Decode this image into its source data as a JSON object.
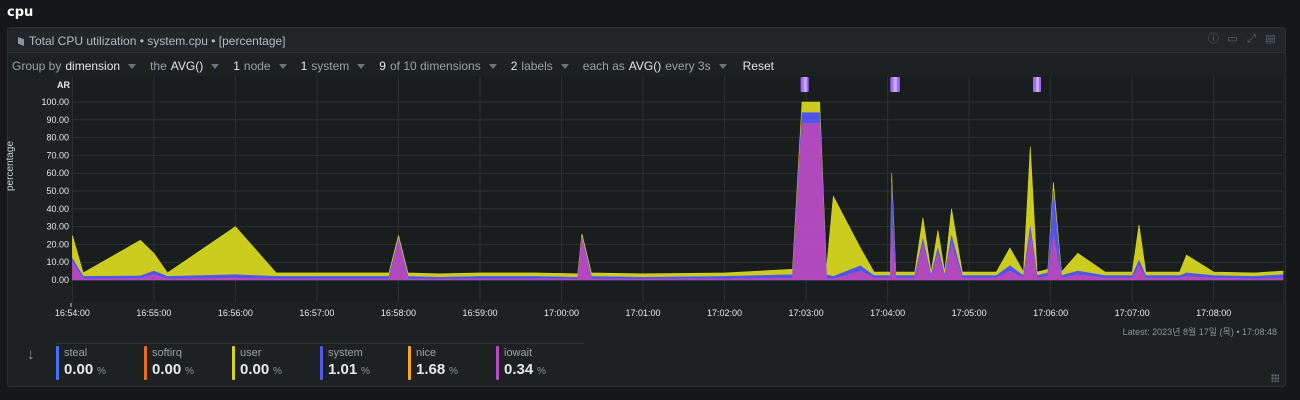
{
  "section_title": "cpu",
  "chart_title": "Total CPU utilization • system.cpu • [percentage]",
  "controls": {
    "group_by_label": "Group by",
    "group_by_value": "dimension",
    "the_label": "the",
    "aggregation": "AVG()",
    "nodes_num": "1",
    "nodes_label": "node",
    "systems_num": "1",
    "systems_label": "system",
    "dims_num": "9",
    "dims_label": "of 10 dimensions",
    "labels_num": "2",
    "labels_label": "labels",
    "each_as_label": "each as",
    "time_agg": "AVG()",
    "every_label": "every 3s",
    "reset_label": "Reset"
  },
  "header_icons": [
    "info-icon",
    "export-icon",
    "expand-icon",
    "settings-icon"
  ],
  "ylabel": "percentage",
  "ar_label": "AR",
  "latest_label": "Latest: 2023년 8월 17일 (목) • 17:08:48",
  "legend": [
    {
      "name": "steal",
      "value": "0.00",
      "unit": "%",
      "color": "#4a6fff"
    },
    {
      "name": "softirq",
      "value": "0.00",
      "unit": "%",
      "color": "#f06a1a"
    },
    {
      "name": "user",
      "value": "0.00",
      "unit": "%",
      "color": "#d6d61f"
    },
    {
      "name": "system",
      "value": "1.01",
      "unit": "%",
      "color": "#5458f0"
    },
    {
      "name": "nice",
      "value": "1.68",
      "unit": "%",
      "color": "#f5a623"
    },
    {
      "name": "iowait",
      "value": "0.34",
      "unit": "%",
      "color": "#b84cc4"
    }
  ],
  "chart_data": {
    "type": "area",
    "stacked": true,
    "ylabel": "percentage",
    "ylim": [
      0,
      100
    ],
    "yticks": [
      "100.00",
      "90.00",
      "80.00",
      "70.00",
      "60.00",
      "50.00",
      "40.00",
      "30.00",
      "20.00",
      "10.00",
      "0.00"
    ],
    "xticks": [
      "16:54:00",
      "16:55:00",
      "16:56:00",
      "16:57:00",
      "16:58:00",
      "16:59:00",
      "17:00:00",
      "17:01:00",
      "17:02:00",
      "17:03:00",
      "17:04:00",
      "17:05:00",
      "17:06:00",
      "17:07:00",
      "17:08:00"
    ],
    "x_range": [
      "16:53:59",
      "17:08:51"
    ],
    "grid": true,
    "series_order": [
      "iowait",
      "system",
      "user"
    ],
    "series": [
      {
        "name": "iowait",
        "color": "#b84cc4",
        "points": [
          [
            "16:54:00",
            10
          ],
          [
            "16:54:08",
            0.5
          ],
          [
            "16:54:50",
            0.8
          ],
          [
            "16:55:00",
            3
          ],
          [
            "16:55:10",
            0.5
          ],
          [
            "16:56:00",
            1
          ],
          [
            "16:56:30",
            0.5
          ],
          [
            "16:57:00",
            0.5
          ],
          [
            "16:57:53",
            0.5
          ],
          [
            "16:58:00",
            22
          ],
          [
            "16:58:07",
            0.5
          ],
          [
            "16:58:30",
            0.5
          ],
          [
            "16:59:00",
            0.5
          ],
          [
            "16:59:40",
            0.5
          ],
          [
            "17:00:12",
            0.5
          ],
          [
            "17:00:15",
            23
          ],
          [
            "17:00:22",
            0.5
          ],
          [
            "17:01:00",
            0.5
          ],
          [
            "17:02:00",
            0.5
          ],
          [
            "17:02:50",
            1
          ],
          [
            "17:02:57",
            88
          ],
          [
            "17:03:10",
            88
          ],
          [
            "17:03:15",
            1
          ],
          [
            "17:03:20",
            0.5
          ],
          [
            "17:03:40",
            5
          ],
          [
            "17:03:50",
            1
          ],
          [
            "17:04:02",
            1
          ],
          [
            "17:04:03",
            30
          ],
          [
            "17:04:06",
            1
          ],
          [
            "17:04:20",
            1
          ],
          [
            "17:04:26",
            20
          ],
          [
            "17:04:32",
            1
          ],
          [
            "17:04:37",
            15
          ],
          [
            "17:04:42",
            1
          ],
          [
            "17:04:47",
            20
          ],
          [
            "17:04:55",
            1
          ],
          [
            "17:05:20",
            1
          ],
          [
            "17:05:30",
            5
          ],
          [
            "17:05:40",
            1
          ],
          [
            "17:05:45",
            25
          ],
          [
            "17:05:50",
            1
          ],
          [
            "17:05:58",
            2
          ],
          [
            "17:06:02",
            25
          ],
          [
            "17:06:08",
            1
          ],
          [
            "17:06:20",
            3
          ],
          [
            "17:06:40",
            1
          ],
          [
            "17:07:00",
            1
          ],
          [
            "17:07:05",
            8
          ],
          [
            "17:07:10",
            1
          ],
          [
            "17:07:35",
            1
          ],
          [
            "17:07:40",
            2
          ],
          [
            "17:08:00",
            1
          ],
          [
            "17:08:30",
            0.5
          ],
          [
            "17:08:51",
            1
          ]
        ]
      },
      {
        "name": "system",
        "color": "#5458f0",
        "points": [
          [
            "16:54:00",
            2
          ],
          [
            "16:54:08",
            1.5
          ],
          [
            "16:54:50",
            1.5
          ],
          [
            "16:55:00",
            2
          ],
          [
            "16:55:10",
            1.5
          ],
          [
            "16:56:00",
            2
          ],
          [
            "16:56:30",
            1.5
          ],
          [
            "16:57:00",
            1.5
          ],
          [
            "16:57:53",
            1.5
          ],
          [
            "16:58:00",
            1
          ],
          [
            "16:58:07",
            1.5
          ],
          [
            "16:58:30",
            1
          ],
          [
            "16:59:00",
            1.5
          ],
          [
            "16:59:40",
            1.5
          ],
          [
            "17:00:12",
            1
          ],
          [
            "17:00:15",
            1
          ],
          [
            "17:00:22",
            1.5
          ],
          [
            "17:01:00",
            1
          ],
          [
            "17:02:00",
            1.5
          ],
          [
            "17:02:50",
            2
          ],
          [
            "17:02:57",
            6
          ],
          [
            "17:03:10",
            6
          ],
          [
            "17:03:15",
            2
          ],
          [
            "17:03:20",
            1.5
          ],
          [
            "17:03:40",
            3
          ],
          [
            "17:03:50",
            1.5
          ],
          [
            "17:04:02",
            1.5
          ],
          [
            "17:04:03",
            25
          ],
          [
            "17:04:06",
            1.5
          ],
          [
            "17:04:20",
            1.5
          ],
          [
            "17:04:26",
            3
          ],
          [
            "17:04:32",
            1.5
          ],
          [
            "17:04:37",
            3
          ],
          [
            "17:04:42",
            1.5
          ],
          [
            "17:04:47",
            5
          ],
          [
            "17:04:55",
            1.5
          ],
          [
            "17:05:20",
            1.5
          ],
          [
            "17:05:30",
            3
          ],
          [
            "17:05:40",
            1.5
          ],
          [
            "17:05:45",
            5
          ],
          [
            "17:05:50",
            1.5
          ],
          [
            "17:05:58",
            2
          ],
          [
            "17:06:02",
            25
          ],
          [
            "17:06:08",
            1.5
          ],
          [
            "17:06:20",
            2
          ],
          [
            "17:06:40",
            1.5
          ],
          [
            "17:07:00",
            1.5
          ],
          [
            "17:07:05",
            3
          ],
          [
            "17:07:10",
            1.5
          ],
          [
            "17:07:35",
            1.5
          ],
          [
            "17:07:40",
            2
          ],
          [
            "17:08:00",
            1.5
          ],
          [
            "17:08:30",
            1.5
          ],
          [
            "17:08:51",
            2
          ]
        ]
      },
      {
        "name": "user",
        "color": "#d6d61f",
        "points": [
          [
            "16:54:00",
            13
          ],
          [
            "16:54:08",
            2
          ],
          [
            "16:54:50",
            20
          ],
          [
            "16:55:00",
            10
          ],
          [
            "16:55:10",
            2
          ],
          [
            "16:56:00",
            27
          ],
          [
            "16:56:30",
            2
          ],
          [
            "16:57:00",
            2
          ],
          [
            "16:57:53",
            2
          ],
          [
            "16:58:00",
            2
          ],
          [
            "16:58:07",
            2
          ],
          [
            "16:58:30",
            2
          ],
          [
            "16:59:00",
            2
          ],
          [
            "16:59:40",
            2
          ],
          [
            "17:00:12",
            2
          ],
          [
            "17:00:15",
            2
          ],
          [
            "17:00:22",
            2
          ],
          [
            "17:01:00",
            2
          ],
          [
            "17:02:00",
            2
          ],
          [
            "17:02:50",
            3
          ],
          [
            "17:02:57",
            6
          ],
          [
            "17:03:10",
            6
          ],
          [
            "17:03:15",
            3
          ],
          [
            "17:03:20",
            45
          ],
          [
            "17:03:40",
            10
          ],
          [
            "17:03:50",
            2
          ],
          [
            "17:04:02",
            2
          ],
          [
            "17:04:03",
            5
          ],
          [
            "17:04:06",
            2
          ],
          [
            "17:04:20",
            2
          ],
          [
            "17:04:26",
            12
          ],
          [
            "17:04:32",
            2
          ],
          [
            "17:04:37",
            10
          ],
          [
            "17:04:42",
            2
          ],
          [
            "17:04:47",
            15
          ],
          [
            "17:04:55",
            2
          ],
          [
            "17:05:20",
            2
          ],
          [
            "17:05:30",
            10
          ],
          [
            "17:05:40",
            2
          ],
          [
            "17:05:45",
            45
          ],
          [
            "17:05:50",
            2
          ],
          [
            "17:05:58",
            2
          ],
          [
            "17:06:02",
            5
          ],
          [
            "17:06:08",
            2
          ],
          [
            "17:06:20",
            10
          ],
          [
            "17:06:40",
            2
          ],
          [
            "17:07:00",
            2
          ],
          [
            "17:07:05",
            20
          ],
          [
            "17:07:10",
            2
          ],
          [
            "17:07:35",
            2
          ],
          [
            "17:07:40",
            10
          ],
          [
            "17:08:00",
            2
          ],
          [
            "17:08:30",
            2
          ],
          [
            "17:08:51",
            2
          ]
        ]
      }
    ],
    "anomaly_markers": [
      [
        "17:02:56",
        "17:03:01"
      ],
      [
        "17:04:02",
        "17:04:09"
      ],
      [
        "17:05:47",
        "17:05:52"
      ]
    ]
  }
}
